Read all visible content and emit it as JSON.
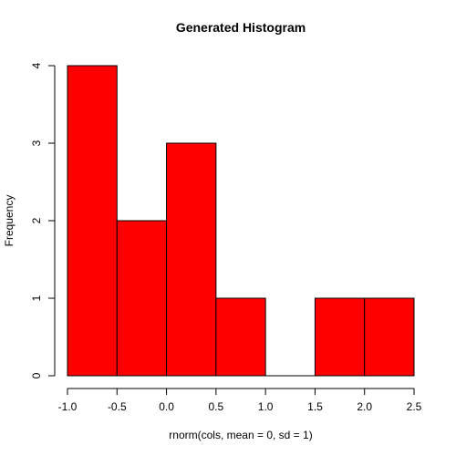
{
  "chart_data": {
    "type": "bar",
    "title": "Generated Histogram",
    "xlabel": "rnorm(cols, mean = 0, sd = 1)",
    "ylabel": "Frequency",
    "bins": [
      {
        "start": -1.0,
        "end": -0.5,
        "count": 4
      },
      {
        "start": -0.5,
        "end": 0.0,
        "count": 2
      },
      {
        "start": 0.0,
        "end": 0.5,
        "count": 3
      },
      {
        "start": 0.5,
        "end": 1.0,
        "count": 1
      },
      {
        "start": 1.0,
        "end": 1.5,
        "count": 0
      },
      {
        "start": 1.5,
        "end": 2.0,
        "count": 1
      },
      {
        "start": 2.0,
        "end": 2.5,
        "count": 1
      }
    ],
    "xlim": [
      -1.0,
      2.5
    ],
    "ylim": [
      0,
      4
    ],
    "x_ticks": [
      "-1.0",
      "-0.5",
      "0.0",
      "0.5",
      "1.0",
      "1.5",
      "2.0",
      "2.5"
    ],
    "y_ticks": [
      "0",
      "1",
      "2",
      "3",
      "4"
    ],
    "bar_color": "#ff0000",
    "grid": false
  }
}
